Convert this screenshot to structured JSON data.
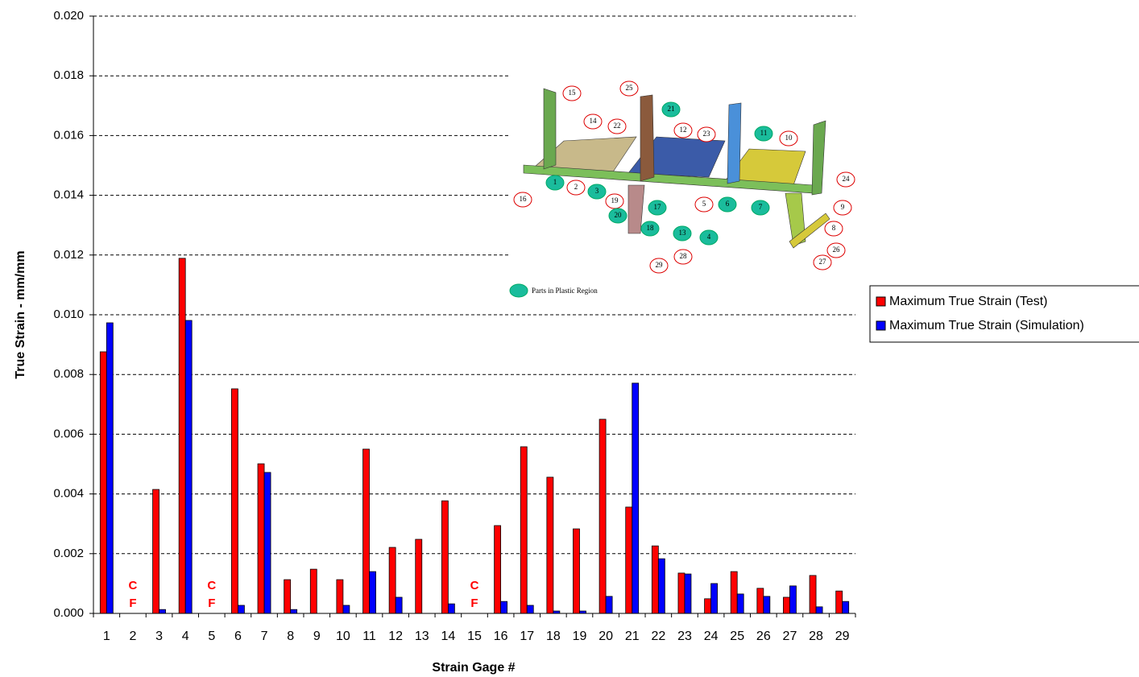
{
  "chart_data": {
    "type": "bar",
    "y_label": "True Strain - mm/mm",
    "x_label": "Strain Gage #",
    "categories": [
      "1",
      "2",
      "3",
      "4",
      "5",
      "6",
      "7",
      "8",
      "9",
      "10",
      "11",
      "12",
      "13",
      "14",
      "15",
      "16",
      "17",
      "18",
      "19",
      "20",
      "21",
      "22",
      "23",
      "24",
      "25",
      "26",
      "27",
      "28",
      "29"
    ],
    "series": [
      {
        "name": "Maximum True Strain (Test)",
        "color": "#ff0000",
        "values": [
          0.00876,
          null,
          0.00415,
          0.01189,
          null,
          0.00752,
          0.00501,
          0.00113,
          0.00148,
          0.00113,
          0.0055,
          0.00221,
          0.00248,
          0.00377,
          null,
          0.00294,
          0.00558,
          0.00456,
          0.00283,
          0.0065,
          0.00356,
          0.00226,
          0.00135,
          0.00049,
          0.0014,
          0.00084,
          0.00054,
          0.00127,
          0.00075
        ]
      },
      {
        "name": "Maximum True Strain (Simulation)",
        "color": "#0000ff",
        "values": [
          0.00973,
          null,
          0.00013,
          0.00981,
          null,
          0.00027,
          0.00472,
          0.00013,
          null,
          0.00027,
          0.0014,
          0.00054,
          null,
          0.00032,
          null,
          0.0004,
          0.00027,
          8e-05,
          8e-05,
          0.00057,
          0.00771,
          0.00183,
          0.00132,
          0.001,
          0.00065,
          0.00057,
          0.00092,
          0.00022,
          0.0004
        ]
      }
    ],
    "annotations": [
      {
        "category": "2",
        "lines": [
          "C",
          "F"
        ]
      },
      {
        "category": "5",
        "lines": [
          "C",
          "F"
        ]
      },
      {
        "category": "15",
        "lines": [
          "C",
          "F"
        ]
      }
    ],
    "ylim": [
      0,
      0.02
    ],
    "yticks": [
      {
        "value": 0,
        "label": "0.000"
      },
      {
        "value": 0.002,
        "label": "0.002"
      },
      {
        "value": 0.004,
        "label": "0.004"
      },
      {
        "value": 0.006,
        "label": "0.006"
      },
      {
        "value": 0.008,
        "label": "0.008"
      },
      {
        "value": 0.01,
        "label": "0.010"
      },
      {
        "value": 0.012,
        "label": "0.012"
      },
      {
        "value": 0.014,
        "label": "0.014"
      },
      {
        "value": 0.016,
        "label": "0.016"
      },
      {
        "value": 0.018,
        "label": "0.018"
      },
      {
        "value": 0.02,
        "label": "0.020"
      }
    ],
    "grid": true,
    "legend": "right",
    "inset": {
      "note": "Parts in Plastic Region",
      "callouts": [
        {
          "label": "15",
          "plastic": false
        },
        {
          "label": "14",
          "plastic": false
        },
        {
          "label": "22",
          "plastic": false
        },
        {
          "label": "25",
          "plastic": false
        },
        {
          "label": "21",
          "plastic": true
        },
        {
          "label": "12",
          "plastic": false
        },
        {
          "label": "23",
          "plastic": false
        },
        {
          "label": "11",
          "plastic": true
        },
        {
          "label": "10",
          "plastic": false
        },
        {
          "label": "24",
          "plastic": false
        },
        {
          "label": "16",
          "plastic": false
        },
        {
          "label": "1",
          "plastic": true
        },
        {
          "label": "2",
          "plastic": false
        },
        {
          "label": "3",
          "plastic": true
        },
        {
          "label": "19",
          "plastic": false
        },
        {
          "label": "20",
          "plastic": true
        },
        {
          "label": "17",
          "plastic": true
        },
        {
          "label": "18",
          "plastic": true
        },
        {
          "label": "5",
          "plastic": false
        },
        {
          "label": "6",
          "plastic": true
        },
        {
          "label": "7",
          "plastic": true
        },
        {
          "label": "9",
          "plastic": false
        },
        {
          "label": "13",
          "plastic": true
        },
        {
          "label": "4",
          "plastic": true
        },
        {
          "label": "28",
          "plastic": false
        },
        {
          "label": "29",
          "plastic": false
        },
        {
          "label": "8",
          "plastic": false
        },
        {
          "label": "26",
          "plastic": false
        },
        {
          "label": "27",
          "plastic": false
        }
      ]
    }
  }
}
